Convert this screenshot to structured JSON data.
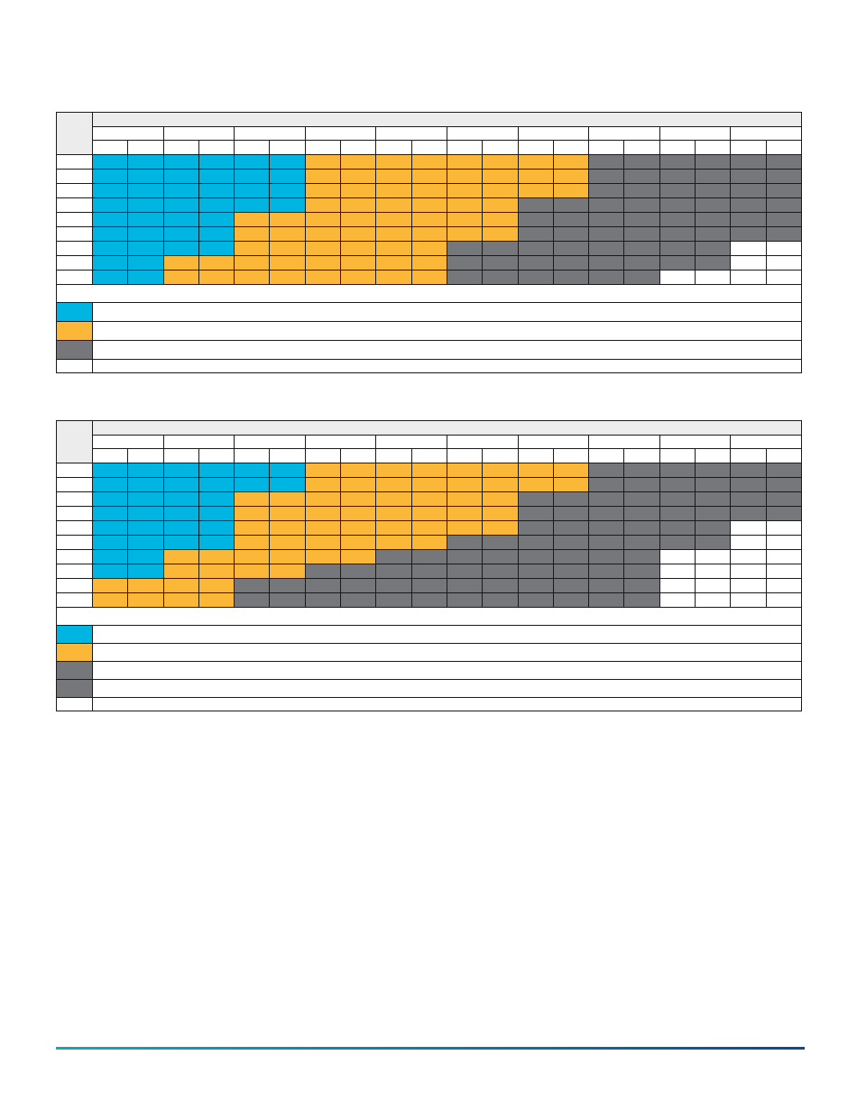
{
  "colors": {
    "blue": "#00b5e2",
    "orange": "#fbb737",
    "gray": "#76777a",
    "white": "#ffffff",
    "header_gray": "#ececec",
    "footer_gradient_start": "#1aa6b3",
    "footer_gradient_end": "#0b4d8c"
  },
  "column_groups": 10,
  "sub_columns_per_group": 2,
  "table1": {
    "rows": [
      "BBBBBBOOOOOOOOGGGGGG",
      "BBBBBBOOOOOOOOGGGGGG",
      "BBBBBBOOOOOOOOGGGGGG",
      "BBBBBBOOOOOOGGGGGGGG",
      "BBBBOOOOOOOOGGGGGGGG",
      "BBBBOOOOOOOOGGGGGGGG",
      "BBBBOOOOOOGGGGGGGGWW",
      "BBOOOOOOOOGGGGGGGGWW",
      "BBOOOOOOOOGGGGGGWWWW"
    ],
    "legend": [
      "B",
      "O",
      "G",
      "W"
    ]
  },
  "table2": {
    "rows": [
      "BBBBBBOOOOOOOOGGGGGG",
      "BBBBBBOOOOOOOOGGGGGG",
      "BBBBOOOOOOOOGGGGGGGG",
      "BBBBOOOOOOOOGGGGGGGG",
      "BBBBOOOOOOOOGGGGGGWW",
      "BBBBOOOOOOGGGGGGGGWW",
      "BBOOOOOOGGGGGGGGWWWW",
      "BBOOOOGGGGGGGGGGWWWW",
      "OOOOGGGGGGGGGGGGWWWW",
      "OOOOGGGGGGGGGGGGWWWW"
    ],
    "legend": [
      "B",
      "O",
      "G",
      "G",
      "W"
    ]
  }
}
